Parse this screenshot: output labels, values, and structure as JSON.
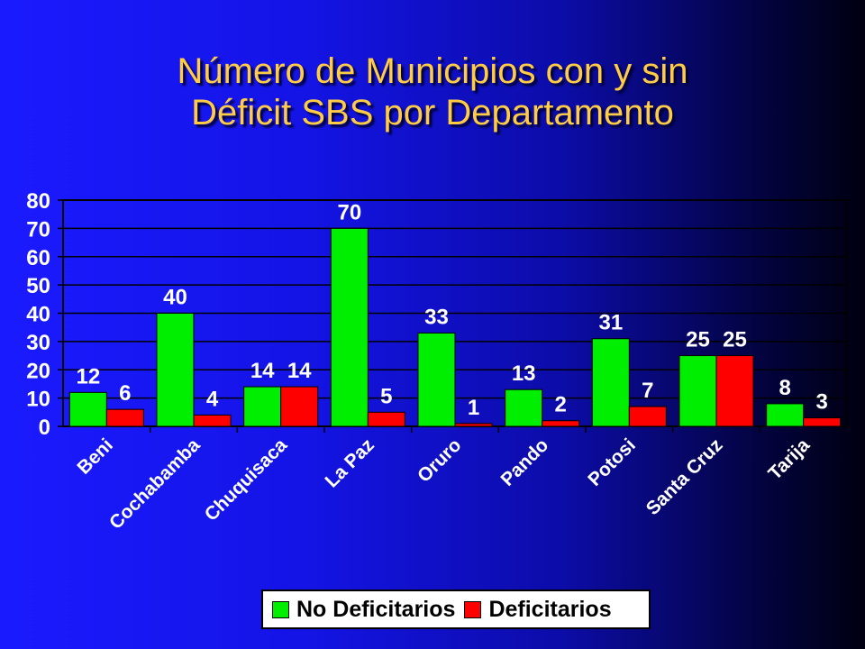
{
  "title_line1": "Número de Municipios con y sin",
  "title_line2": "Déficit SBS por Departamento",
  "colors": {
    "no_deficitarios": "#00ee00",
    "deficitarios": "#ff0000",
    "title": "#ffcc44",
    "axis_text": "#ffffff"
  },
  "chart_data": {
    "type": "bar",
    "title": "Número de Municipios con y sin Déficit SBS por Departamento",
    "categories": [
      "Beni",
      "Cochabamba",
      "Chuquisaca",
      "La Paz",
      "Oruro",
      "Pando",
      "Potosi",
      "Santa Cruz",
      "Tarija"
    ],
    "series": [
      {
        "name": "No Deficitarios",
        "values": [
          12,
          40,
          14,
          70,
          33,
          13,
          31,
          25,
          8
        ]
      },
      {
        "name": "Deficitarios",
        "values": [
          6,
          4,
          14,
          5,
          1,
          2,
          7,
          25,
          3
        ]
      }
    ],
    "yticks": [
      "0",
      "10",
      "20",
      "30",
      "40",
      "50",
      "60",
      "70",
      "80"
    ],
    "ylim": [
      0,
      80
    ],
    "grid": true,
    "legend_position": "bottom"
  }
}
